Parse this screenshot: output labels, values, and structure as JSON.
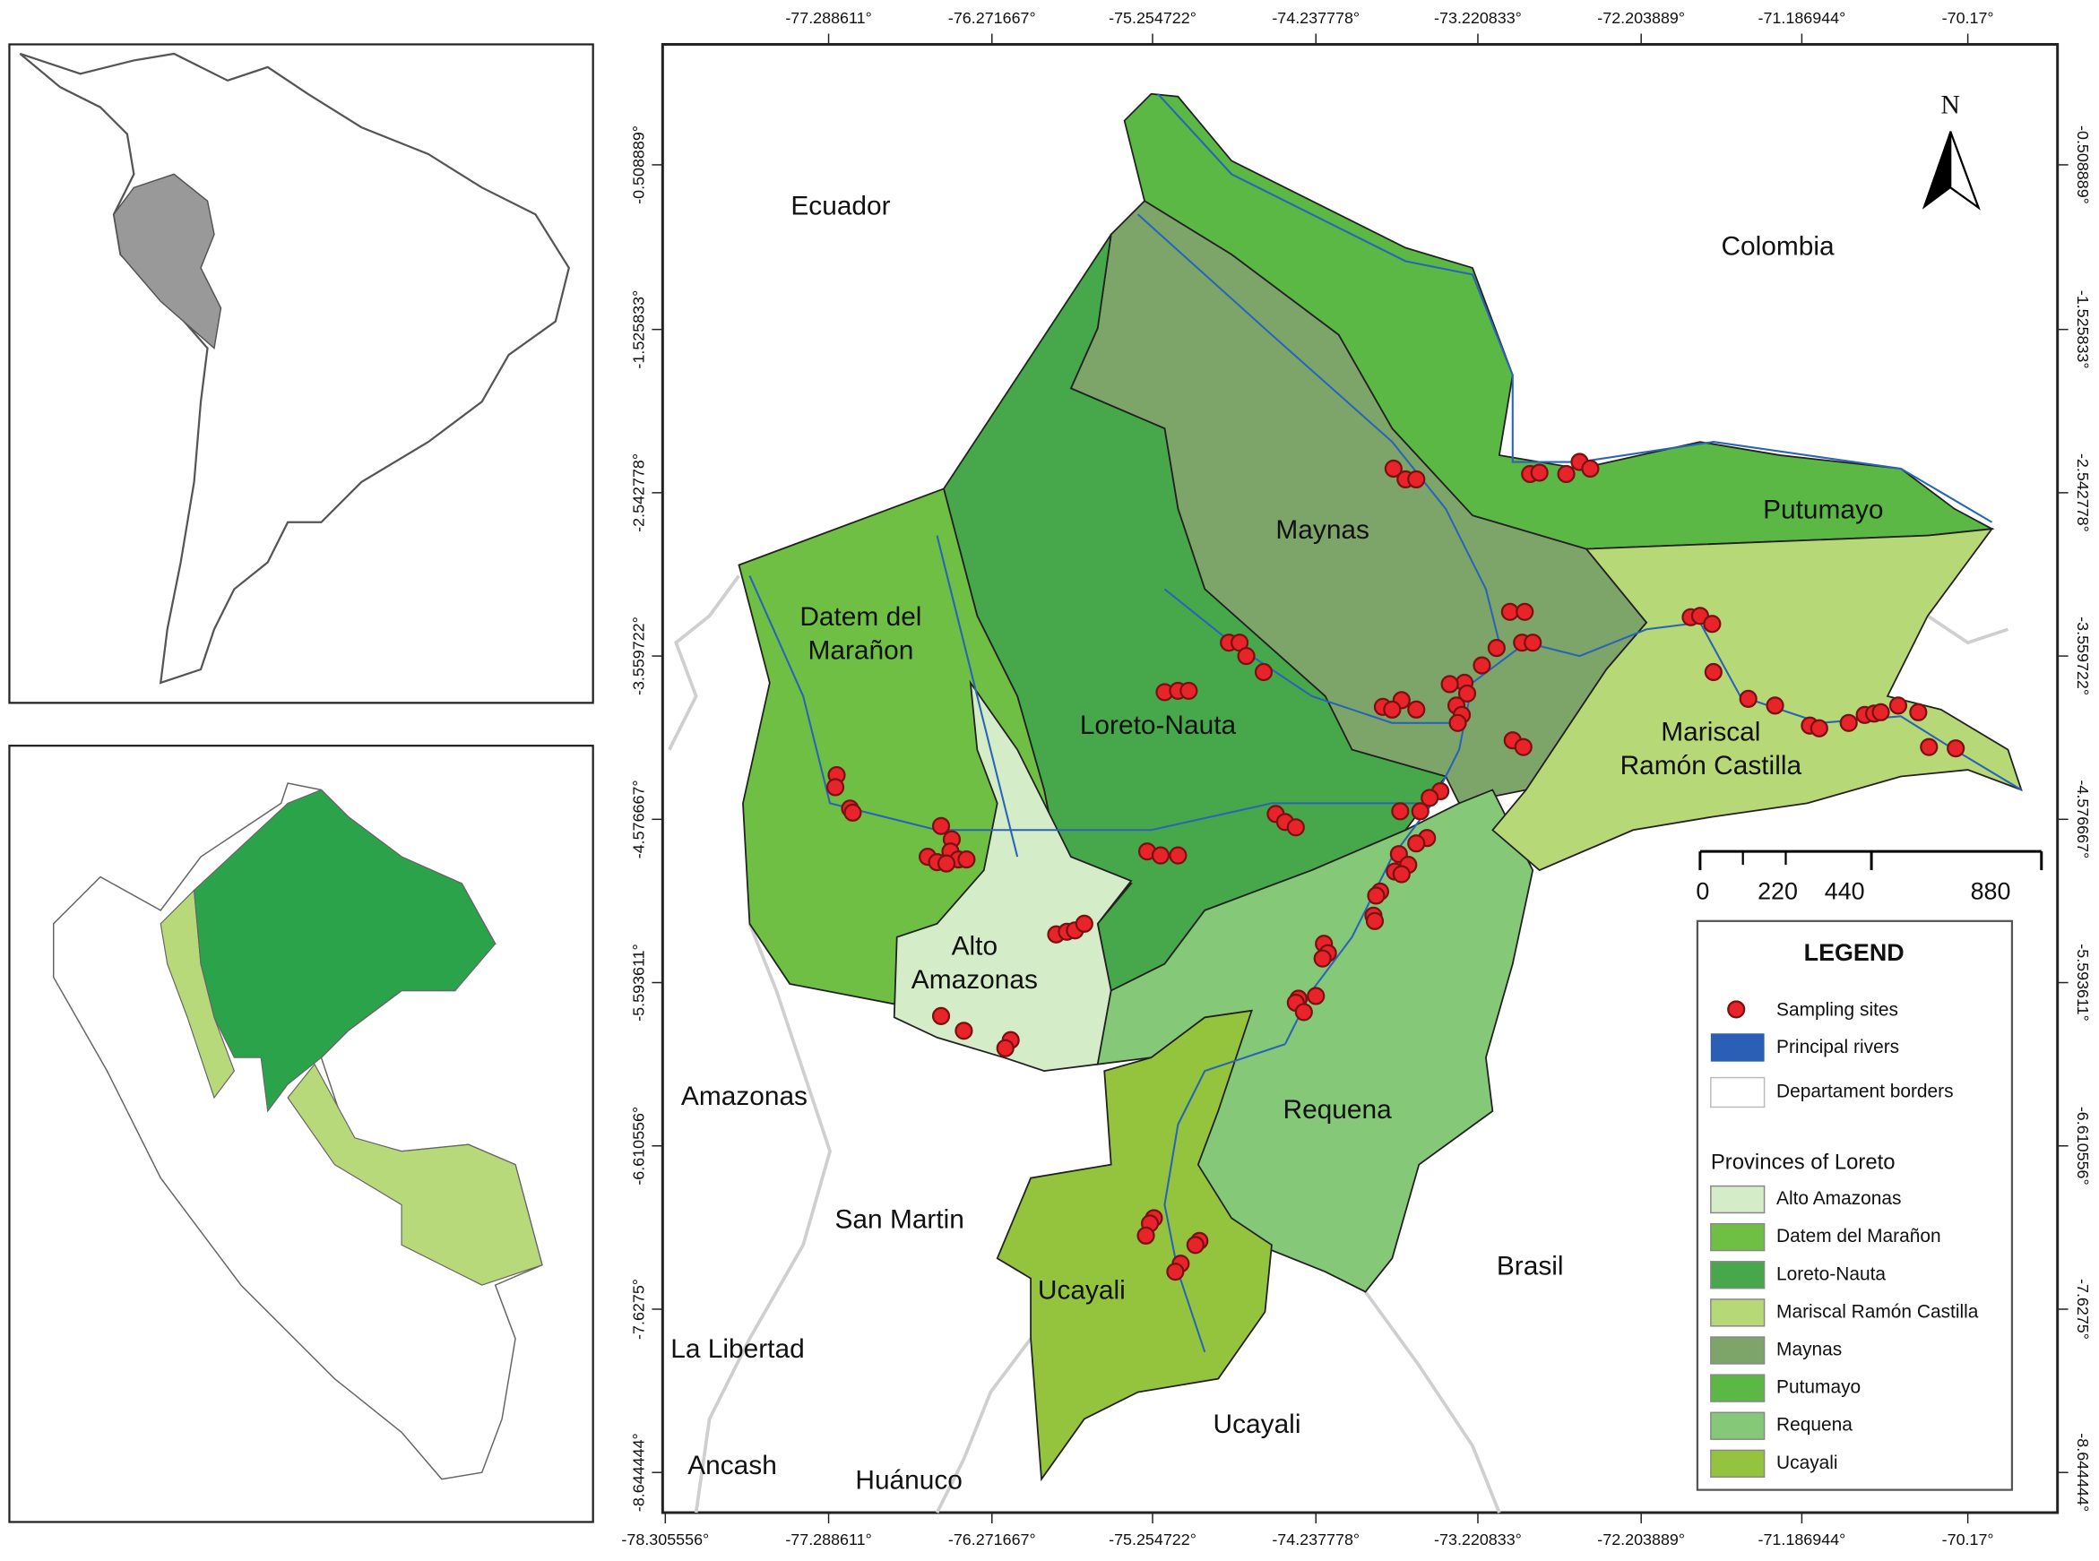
{
  "map": {
    "longitude_labels": [
      "-78.305556°",
      "-77.288611°",
      "-76.271667°",
      "-75.254722°",
      "-74.237778°",
      "-73.220833°",
      "-72.203889°",
      "-71.186944°",
      "-70.17°"
    ],
    "latitude_labels": [
      "-0.508889°",
      "-1.525833°",
      "-2.542778°",
      "-3.559722°",
      "-4.576667°",
      "-5.593611°",
      "-6.610556°",
      "-7.6275°",
      "-8.644444°"
    ],
    "north_label": "N",
    "region_labels": [
      "Ecuador",
      "Colombia",
      "Amazonas",
      "San Martin",
      "Brasil",
      "La Libertad",
      "Ucayali",
      "Ancash",
      "Huánuco"
    ],
    "province_labels": [
      [
        "Putumayo"
      ],
      [
        "Maynas"
      ],
      [
        "Datem del",
        "Marañon"
      ],
      [
        "Loreto-Nauta"
      ],
      [
        "Mariscal",
        "Ramón Castilla"
      ],
      [
        "Alto",
        "Amazonas"
      ],
      [
        "Requena"
      ],
      [
        "Ucayali"
      ]
    ],
    "scale_labels": [
      "0",
      "220",
      "440",
      "880"
    ],
    "legend": {
      "title": "LEGEND",
      "items": [
        "Sampling sites",
        "Principal rivers",
        "Departament borders"
      ],
      "provinces_title": "Provinces of Loreto",
      "provinces": [
        "Alto Amazonas",
        "Datem del Marañon",
        "Loreto-Nauta",
        "Mariscal Ramón Castilla",
        "Maynas",
        "Putumayo",
        "Requena",
        "Ucayali"
      ]
    }
  }
}
